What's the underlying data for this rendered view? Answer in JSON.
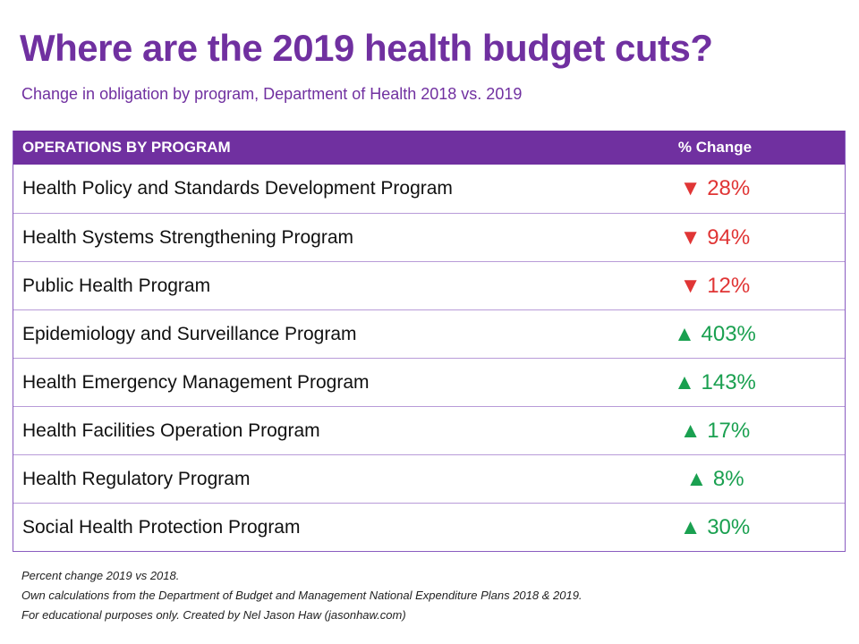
{
  "header": {
    "title": "Where are the 2019 health budget cuts?",
    "subtitle": "Change in obligation by program, Department of Health 2018 vs. 2019"
  },
  "colors": {
    "accent": "#7030a0",
    "decrease": "#e03535",
    "increase": "#1aa050"
  },
  "chart_data": {
    "type": "table",
    "title": "Where are the 2019 health budget cuts?",
    "subtitle": "Change in obligation by program, Department of Health 2018 vs. 2019",
    "columns": [
      "OPERATIONS BY PROGRAM",
      "% Change"
    ],
    "rows": [
      {
        "program": "Health Policy and Standards Development Program",
        "direction": "down",
        "symbol": "▼",
        "value": -28,
        "label": "28%"
      },
      {
        "program": "Health Systems Strengthening Program",
        "direction": "down",
        "symbol": "▼",
        "value": -94,
        "label": "94%"
      },
      {
        "program": "Public Health Program",
        "direction": "down",
        "symbol": "▼",
        "value": -12,
        "label": "12%"
      },
      {
        "program": "Epidemiology and Surveillance Program",
        "direction": "up",
        "symbol": "▲",
        "value": 403,
        "label": "403%"
      },
      {
        "program": "Health Emergency Management Program",
        "direction": "up",
        "symbol": "▲",
        "value": 143,
        "label": "143%"
      },
      {
        "program": "Health Facilities Operation Program",
        "direction": "up",
        "symbol": "▲",
        "value": 17,
        "label": "17%"
      },
      {
        "program": "Health Regulatory Program",
        "direction": "up",
        "symbol": "▲",
        "value": 8,
        "label": "8%"
      },
      {
        "program": "Social Health Protection Program",
        "direction": "up",
        "symbol": "▲",
        "value": 30,
        "label": "30%"
      }
    ]
  },
  "notes": [
    "Percent change 2019 vs 2018.",
    "Own calculations from the Department of Budget and Management National Expenditure Plans 2018 & 2019.",
    "For educational purposes only. Created by Nel Jason Haw (jasonhaw.com)"
  ]
}
